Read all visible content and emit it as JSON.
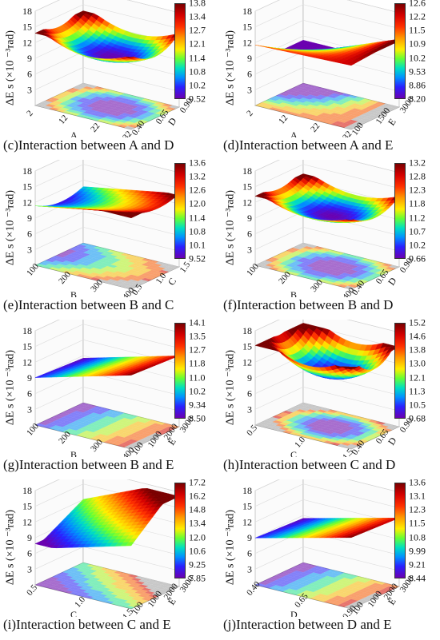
{
  "z_axis": {
    "title": "ΔE s (×10 ⁻³rad)",
    "ticks": [
      "18",
      "15",
      "12",
      "9",
      "6",
      "3"
    ]
  },
  "chart_data": [
    {
      "type": "heatmap",
      "panel": "c",
      "caption": "(c)Interaction between A and D",
      "x_factor": "A",
      "x_ticks": [
        "2",
        "12",
        "22",
        "32"
      ],
      "y_factor": "D",
      "y_ticks": [
        "0.40",
        "0.65",
        "0.90"
      ],
      "colorbar": [
        "13.8",
        "13.4",
        "12.7",
        "12.1",
        "11.4",
        "10.8",
        "10.2",
        "9.52"
      ],
      "zlim": [
        0,
        18
      ],
      "surface": "bowl",
      "z_min": 9.52,
      "z_max": 13.8
    },
    {
      "type": "heatmap",
      "panel": "d",
      "caption": "(d)Interaction between A and E",
      "x_factor": "A",
      "x_ticks": [
        "2",
        "12",
        "22",
        "32"
      ],
      "y_factor": "E",
      "y_ticks": [
        "100",
        "1500",
        "3000"
      ],
      "colorbar": [
        "12.6",
        "12.2",
        "11.5",
        "10.9",
        "10.2",
        "9.53",
        "8.86",
        "8.20"
      ],
      "zlim": [
        0,
        18
      ],
      "surface": "saddle",
      "z_min": 8.2,
      "z_max": 12.6
    },
    {
      "type": "heatmap",
      "panel": "e",
      "caption": "(e)Interaction between B and C",
      "x_factor": "B",
      "x_ticks": [
        "100",
        "200",
        "300",
        "400"
      ],
      "y_factor": "C",
      "y_ticks": [
        "0.5",
        "1.0",
        "1.5"
      ],
      "colorbar": [
        "13.6",
        "13.2",
        "12.6",
        "12.0",
        "11.4",
        "10.8",
        "10.1",
        "9.52"
      ],
      "zlim": [
        0,
        18
      ],
      "surface": "tilted",
      "z_min": 9.52,
      "z_max": 13.6
    },
    {
      "type": "heatmap",
      "panel": "f",
      "caption": "(f)Interaction between B and D",
      "x_factor": "B",
      "x_ticks": [
        "100",
        "200",
        "300",
        "400"
      ],
      "y_factor": "D",
      "y_ticks": [
        "0.40",
        "0.65",
        "0.90"
      ],
      "colorbar": [
        "13.2",
        "12.8",
        "12.3",
        "11.8",
        "11.2",
        "10.7",
        "10.2",
        "9.66"
      ],
      "zlim": [
        0,
        18
      ],
      "surface": "bowl",
      "z_min": 9.66,
      "z_max": 13.2
    },
    {
      "type": "heatmap",
      "panel": "g",
      "caption": "(g)Interaction between B and E",
      "x_factor": "B",
      "x_ticks": [
        "100",
        "200",
        "300",
        "400"
      ],
      "y_factor": "E",
      "y_ticks": [
        "100",
        "1000",
        "2000",
        "3000"
      ],
      "colorbar": [
        "14.1",
        "13.5",
        "12.7",
        "11.8",
        "11.0",
        "10.2",
        "9.34",
        "8.50"
      ],
      "zlim": [
        0,
        18
      ],
      "surface": "flat",
      "z_min": 8.5,
      "z_max": 14.1
    },
    {
      "type": "heatmap",
      "panel": "h",
      "caption": "(h)Interaction between C and D",
      "x_factor": "C",
      "x_ticks": [
        "0.5",
        "1.0",
        "1.5"
      ],
      "y_factor": "D",
      "y_ticks": [
        "0.40",
        "0.65",
        "0.90"
      ],
      "colorbar": [
        "15.2",
        "14.6",
        "13.8",
        "13.0",
        "12.1",
        "11.3",
        "10.5",
        "9.68"
      ],
      "zlim": [
        0,
        18
      ],
      "surface": "deep-bowl",
      "z_min": 9.68,
      "z_max": 15.2
    },
    {
      "type": "heatmap",
      "panel": "i",
      "caption": "(i)Interaction between C and E",
      "x_factor": "C",
      "x_ticks": [
        "0.5",
        "1.0",
        "1.5"
      ],
      "y_factor": "E",
      "y_ticks": [
        "100",
        "1000",
        "2000",
        "3000"
      ],
      "colorbar": [
        "17.2",
        "16.2",
        "14.8",
        "13.4",
        "12.0",
        "10.6",
        "9.25",
        "7.85"
      ],
      "zlim": [
        0,
        18
      ],
      "surface": "peak",
      "z_min": 7.85,
      "z_max": 17.2
    },
    {
      "type": "heatmap",
      "panel": "j",
      "caption": "(j)Interaction between D and E",
      "x_factor": "D",
      "x_ticks": [
        "0.40",
        "0.65",
        "0.90"
      ],
      "y_factor": "E",
      "y_ticks": [
        "100",
        "1000",
        "2000",
        "3000"
      ],
      "colorbar": [
        "13.6",
        "13.1",
        "12.3",
        "11.5",
        "10.8",
        "9.99",
        "9.21",
        "8.44"
      ],
      "zlim": [
        0,
        18
      ],
      "surface": "flat",
      "z_min": 8.44,
      "z_max": 13.6
    }
  ]
}
